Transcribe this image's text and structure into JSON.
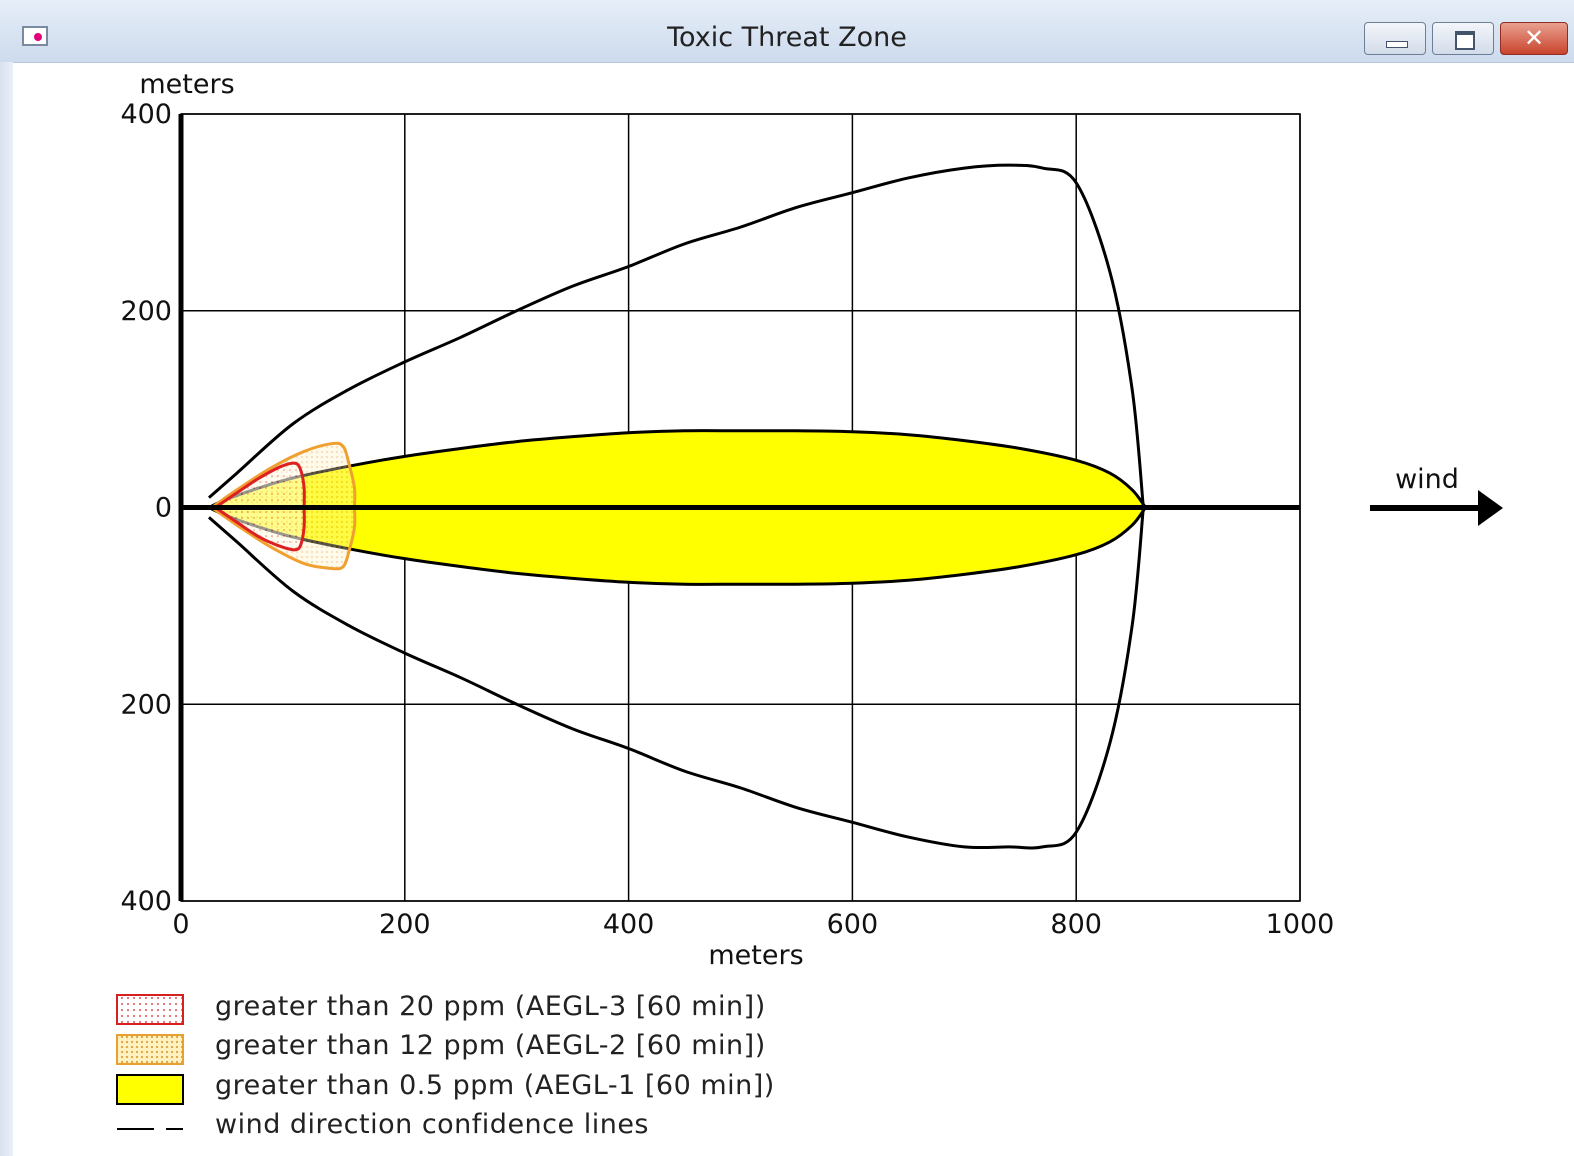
{
  "window": {
    "title": "Toxic Threat Zone",
    "controls": {
      "minimize": "minimize",
      "maximize": "maximize",
      "close": "✕"
    }
  },
  "wind_label": "wind",
  "chart_data": {
    "type": "area",
    "x_axis": {
      "label": "meters",
      "range": [
        0,
        1000
      ],
      "ticks": [
        0,
        200,
        400,
        600,
        800,
        1000
      ]
    },
    "y_axis": {
      "label": "meters",
      "range": [
        -400,
        400
      ],
      "ticks": [
        -400,
        -200,
        0,
        200,
        400
      ],
      "tick_labels": [
        "400",
        "200",
        "0",
        "200",
        "400"
      ]
    },
    "grid": true,
    "series": [
      {
        "name": "wind direction confidence lines",
        "color": "#000000",
        "fill": "none",
        "points_upper": [
          [
            25,
            10
          ],
          [
            50,
            35
          ],
          [
            100,
            85
          ],
          [
            150,
            120
          ],
          [
            200,
            148
          ],
          [
            250,
            173
          ],
          [
            300,
            200
          ],
          [
            350,
            225
          ],
          [
            400,
            245
          ],
          [
            450,
            268
          ],
          [
            500,
            285
          ],
          [
            550,
            305
          ],
          [
            600,
            320
          ],
          [
            650,
            335
          ],
          [
            700,
            345
          ],
          [
            740,
            348
          ],
          [
            770,
            345
          ],
          [
            800,
            330
          ],
          [
            830,
            240
          ],
          [
            850,
            120
          ],
          [
            860,
            0
          ]
        ],
        "points_lower": [
          [
            25,
            -10
          ],
          [
            50,
            -35
          ],
          [
            100,
            -85
          ],
          [
            150,
            -120
          ],
          [
            200,
            -148
          ],
          [
            250,
            -173
          ],
          [
            300,
            -200
          ],
          [
            350,
            -225
          ],
          [
            400,
            -245
          ],
          [
            450,
            -268
          ],
          [
            500,
            -285
          ],
          [
            550,
            -305
          ],
          [
            600,
            -320
          ],
          [
            650,
            -335
          ],
          [
            700,
            -345
          ],
          [
            740,
            -345
          ],
          [
            770,
            -345
          ],
          [
            800,
            -330
          ],
          [
            830,
            -240
          ],
          [
            850,
            -120
          ],
          [
            860,
            0
          ]
        ]
      },
      {
        "name": "greater than 0.5 ppm (AEGL-1 [60 min])",
        "color": "#ffff00",
        "stroke": "#000000",
        "points_upper": [
          [
            25,
            0
          ],
          [
            40,
            8
          ],
          [
            70,
            20
          ],
          [
            100,
            30
          ],
          [
            150,
            42
          ],
          [
            200,
            52
          ],
          [
            250,
            60
          ],
          [
            300,
            67
          ],
          [
            350,
            72
          ],
          [
            400,
            76
          ],
          [
            450,
            78
          ],
          [
            500,
            78
          ],
          [
            550,
            78
          ],
          [
            600,
            77
          ],
          [
            650,
            74
          ],
          [
            700,
            68
          ],
          [
            750,
            60
          ],
          [
            800,
            48
          ],
          [
            830,
            35
          ],
          [
            850,
            18
          ],
          [
            862,
            0
          ]
        ],
        "points_lower": [
          [
            25,
            0
          ],
          [
            40,
            -8
          ],
          [
            70,
            -20
          ],
          [
            100,
            -30
          ],
          [
            150,
            -42
          ],
          [
            200,
            -52
          ],
          [
            250,
            -60
          ],
          [
            300,
            -67
          ],
          [
            350,
            -72
          ],
          [
            400,
            -76
          ],
          [
            450,
            -78
          ],
          [
            500,
            -78
          ],
          [
            550,
            -78
          ],
          [
            600,
            -77
          ],
          [
            650,
            -74
          ],
          [
            700,
            -68
          ],
          [
            750,
            -60
          ],
          [
            800,
            -48
          ],
          [
            830,
            -35
          ],
          [
            850,
            -18
          ],
          [
            862,
            0
          ]
        ]
      },
      {
        "name": "greater than 12 ppm (AEGL-2 [60 min])",
        "color": "#f0a030",
        "fill": "dotted",
        "points_upper": [
          [
            30,
            2
          ],
          [
            50,
            18
          ],
          [
            80,
            40
          ],
          [
            110,
            57
          ],
          [
            135,
            65
          ],
          [
            145,
            62
          ],
          [
            150,
            45
          ],
          [
            155,
            20
          ],
          [
            155,
            0
          ]
        ],
        "points_lower": [
          [
            30,
            -2
          ],
          [
            50,
            -18
          ],
          [
            80,
            -40
          ],
          [
            110,
            -57
          ],
          [
            135,
            -62
          ],
          [
            145,
            -60
          ],
          [
            150,
            -45
          ],
          [
            155,
            -20
          ],
          [
            155,
            0
          ]
        ]
      },
      {
        "name": "greater than 20 ppm (AEGL-3 [60 min])",
        "color": "#dd2020",
        "fill": "dotted",
        "points_upper": [
          [
            32,
            1
          ],
          [
            50,
            15
          ],
          [
            70,
            30
          ],
          [
            90,
            42
          ],
          [
            102,
            45
          ],
          [
            107,
            38
          ],
          [
            110,
            20
          ],
          [
            110,
            0
          ]
        ],
        "points_lower": [
          [
            32,
            -1
          ],
          [
            50,
            -15
          ],
          [
            70,
            -30
          ],
          [
            90,
            -40
          ],
          [
            102,
            -43
          ],
          [
            107,
            -38
          ],
          [
            110,
            -20
          ],
          [
            110,
            0
          ]
        ]
      }
    ],
    "legend": [
      {
        "label": "greater than 20 ppm (AEGL-3 [60 min])",
        "swatch": "red-dotted"
      },
      {
        "label": "greater than 12 ppm (AEGL-2 [60 min])",
        "swatch": "orange-dotted"
      },
      {
        "label": "greater than 0.5 ppm (AEGL-1 [60 min])",
        "swatch": "yellow-solid"
      },
      {
        "label": "wind direction confidence lines",
        "swatch": "black-dashed"
      }
    ]
  }
}
